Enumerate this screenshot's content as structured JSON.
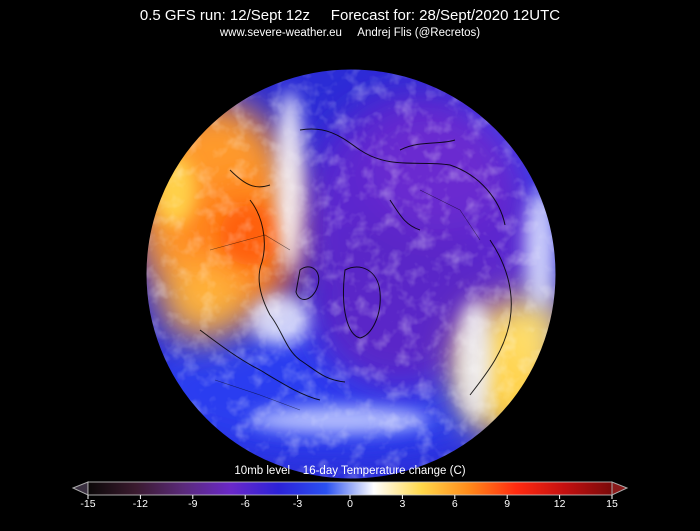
{
  "header": {
    "line1": "0.5 GFS run: 12/Sept 12z     Forecast for: 28/Sept/2020 12UTC",
    "line2": "www.severe-weather.eu     Andrej Flis (@Recretos)"
  },
  "map": {
    "projection": "polar stereographic (north pole)",
    "field": "10mb 16-day temperature change"
  },
  "colorbar": {
    "title": "10mb level    16-day Temperature change (C)",
    "ticks": [
      "-15",
      "-12",
      "-9",
      "-6",
      "-3",
      "0",
      "3",
      "6",
      "9",
      "12",
      "15"
    ],
    "min": -15,
    "max": 15,
    "colors": [
      "#0b0808",
      "#3a1a2e",
      "#5a2a7a",
      "#6a28c8",
      "#2c22d8",
      "#2a50f0",
      "#ffffff",
      "#ffd84a",
      "#ff8a1a",
      "#ff2a10",
      "#c41010",
      "#7a0a0a"
    ]
  }
}
